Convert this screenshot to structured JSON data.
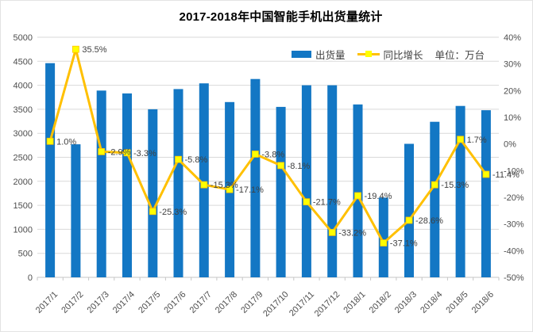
{
  "title": "2017-2018年中国智能手机出货量统计",
  "legend": {
    "series1": "出货量",
    "series2": "同比增长",
    "unit": "单位：万台"
  },
  "chart_data": {
    "type": "combo_bar_line",
    "title": "2017-2018年中国智能手机出货量统计",
    "unit": "万台",
    "categories": [
      "2017/1",
      "2017/2",
      "2017/3",
      "2017/4",
      "2017/5",
      "2017/6",
      "2017/7",
      "2017/8",
      "2017/9",
      "2017/10",
      "2017/11",
      "2017/12",
      "2018/1",
      "2018/2",
      "2018/3",
      "2018/4",
      "2018/5",
      "2018/6"
    ],
    "series": [
      {
        "name": "出货量",
        "type": "bar",
        "axis": "left",
        "values": [
          4460,
          2770,
          3890,
          3830,
          3500,
          3920,
          4040,
          3650,
          4130,
          3550,
          4000,
          4000,
          3600,
          1660,
          2780,
          3240,
          3570,
          3480
        ]
      },
      {
        "name": "同比增长",
        "type": "line",
        "axis": "right",
        "values": [
          1.0,
          35.5,
          -2.9,
          -3.3,
          -25.3,
          -5.8,
          -15.3,
          -17.1,
          -3.8,
          -8.1,
          -21.7,
          -33.2,
          -19.4,
          -37.1,
          -28.6,
          -15.3,
          1.7,
          -11.4
        ],
        "labels": [
          "1.0%",
          "35.5%",
          "-2.9%",
          "-3.3%",
          "-25.3%",
          "-5.8%",
          "-15.3%",
          "-17.1%",
          "-3.8%",
          "-8.1%",
          "-21.7%",
          "-33.2%",
          "-19.4%",
          "-37.1%",
          "-28.6%",
          "-15.3%",
          "1.7%",
          "-11.4%"
        ]
      }
    ],
    "left_axis": {
      "min": 0,
      "max": 5000,
      "step": 500,
      "tick_labels": [
        "0",
        "500",
        "1000",
        "1500",
        "2000",
        "2500",
        "3000",
        "3500",
        "4000",
        "4500",
        "5000"
      ]
    },
    "right_axis": {
      "min": -50,
      "max": 40,
      "step": 10,
      "tick_labels": [
        "40%",
        "30%",
        "20%",
        "10%",
        "0%",
        "-10%",
        "-20%",
        "-30%",
        "-40%",
        "-50%"
      ]
    },
    "grid": true,
    "legend_position": "top-right"
  },
  "colors": {
    "bar": "#1377c4",
    "line": "#ffc000",
    "marker": "#ffff00",
    "grid": "#d9d9d9",
    "axis_line": "#c6c6c6",
    "axis_text": "#4d4d4d",
    "label_text": "#404040",
    "title": "#000000"
  }
}
